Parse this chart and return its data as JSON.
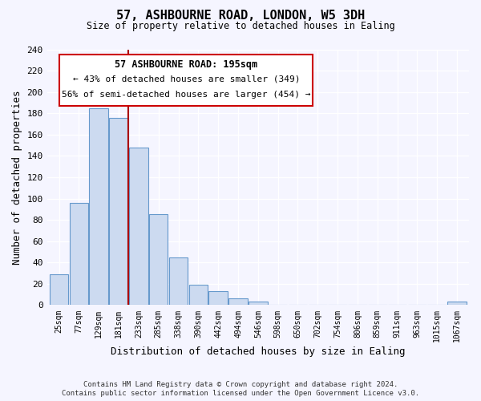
{
  "title": "57, ASHBOURNE ROAD, LONDON, W5 3DH",
  "subtitle": "Size of property relative to detached houses in Ealing",
  "xlabel": "Distribution of detached houses by size in Ealing",
  "ylabel": "Number of detached properties",
  "bar_color": "#ccdaf0",
  "bar_edge_color": "#6699cc",
  "categories": [
    "25sqm",
    "77sqm",
    "129sqm",
    "181sqm",
    "233sqm",
    "285sqm",
    "338sqm",
    "390sqm",
    "442sqm",
    "494sqm",
    "546sqm",
    "598sqm",
    "650sqm",
    "702sqm",
    "754sqm",
    "806sqm",
    "859sqm",
    "911sqm",
    "963sqm",
    "1015sqm",
    "1067sqm"
  ],
  "values": [
    29,
    96,
    185,
    176,
    148,
    85,
    45,
    19,
    13,
    6,
    3,
    0,
    0,
    0,
    0,
    0,
    0,
    0,
    0,
    0,
    3
  ],
  "ylim": [
    0,
    240
  ],
  "yticks": [
    0,
    20,
    40,
    60,
    80,
    100,
    120,
    140,
    160,
    180,
    200,
    220,
    240
  ],
  "vline_index": 3.5,
  "vline_color": "#aa0000",
  "annotation_title": "57 ASHBOURNE ROAD: 195sqm",
  "annotation_line1": "← 43% of detached houses are smaller (349)",
  "annotation_line2": "56% of semi-detached houses are larger (454) →",
  "annotation_box_color": "#ffffff",
  "annotation_box_edge": "#cc0000",
  "footer_line1": "Contains HM Land Registry data © Crown copyright and database right 2024.",
  "footer_line2": "Contains public sector information licensed under the Open Government Licence v3.0.",
  "fig_bg_color": "#f5f5ff",
  "plot_bg_color": "#f5f5ff"
}
